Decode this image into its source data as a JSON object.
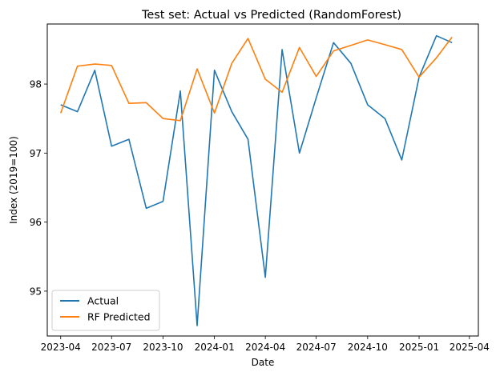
{
  "chart_data": {
    "type": "line",
    "title": "Test set: Actual vs Predicted (RandomForest)",
    "xlabel": "Date",
    "ylabel": "Index (2019=100)",
    "x_type": "date",
    "xlim": [
      "2023-03-08",
      "2025-04-17"
    ],
    "ylim": [
      94.35,
      98.87
    ],
    "xticks": [
      {
        "date": "2023-04-01",
        "label": "2023-04"
      },
      {
        "date": "2023-07-01",
        "label": "2023-07"
      },
      {
        "date": "2023-10-01",
        "label": "2023-10"
      },
      {
        "date": "2024-01-01",
        "label": "2024-01"
      },
      {
        "date": "2024-04-01",
        "label": "2024-04"
      },
      {
        "date": "2024-07-01",
        "label": "2024-07"
      },
      {
        "date": "2024-10-01",
        "label": "2024-10"
      },
      {
        "date": "2025-01-01",
        "label": "2025-01"
      },
      {
        "date": "2025-04-01",
        "label": "2025-04"
      }
    ],
    "yticks": [
      95,
      96,
      97,
      98
    ],
    "grid": false,
    "legend": "lower-left",
    "x": [
      "2023-04-01",
      "2023-05-01",
      "2023-06-01",
      "2023-07-01",
      "2023-08-01",
      "2023-09-01",
      "2023-10-01",
      "2023-11-01",
      "2023-12-01",
      "2024-01-01",
      "2024-02-01",
      "2024-03-01",
      "2024-04-01",
      "2024-05-01",
      "2024-06-01",
      "2024-07-01",
      "2024-08-01",
      "2024-09-01",
      "2024-10-01",
      "2024-11-01",
      "2024-12-01",
      "2025-01-01",
      "2025-02-01",
      "2025-03-01"
    ],
    "series": [
      {
        "name": "Actual",
        "color": "#1f77b4",
        "values": [
          97.7,
          97.6,
          98.2,
          97.1,
          97.2,
          96.2,
          96.3,
          97.9,
          94.5,
          98.2,
          97.6,
          97.2,
          95.2,
          98.5,
          97.0,
          97.8,
          98.6,
          98.3,
          97.7,
          97.5,
          96.9,
          98.1,
          98.7,
          98.6
        ]
      },
      {
        "name": "RF Predicted",
        "color": "#ff7f0e",
        "values": [
          97.58,
          98.26,
          98.29,
          98.27,
          97.72,
          97.73,
          97.5,
          97.47,
          98.22,
          97.58,
          98.3,
          98.66,
          98.07,
          97.88,
          98.53,
          98.11,
          98.48,
          98.56,
          98.64,
          98.57,
          98.5,
          98.1,
          98.38,
          98.68
        ]
      }
    ]
  }
}
